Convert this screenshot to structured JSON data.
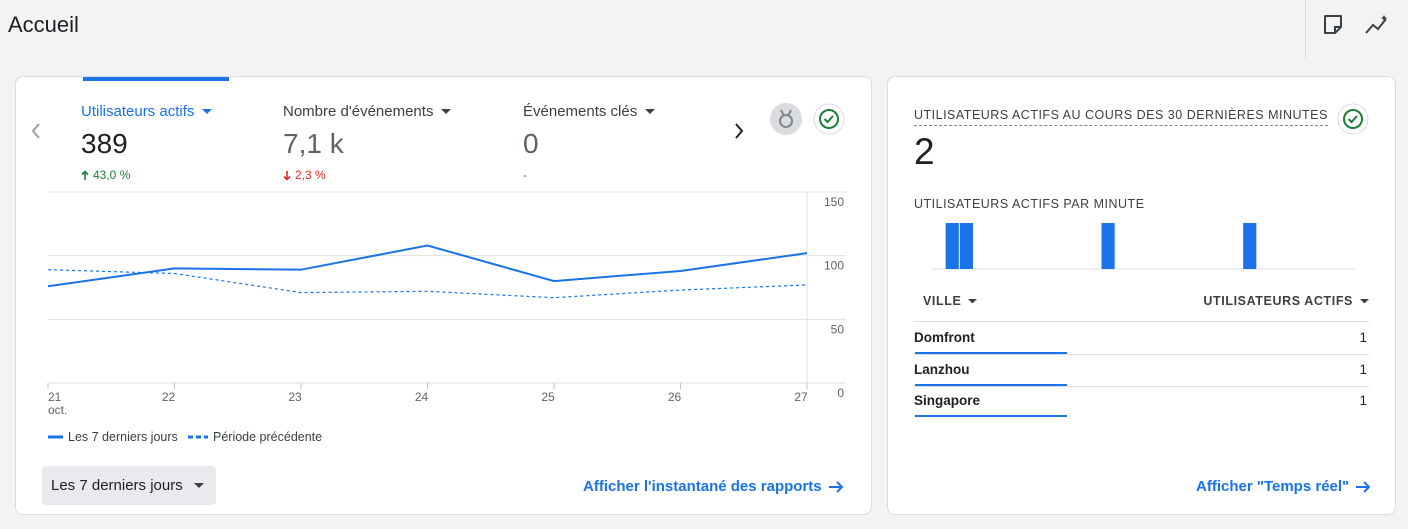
{
  "header": {
    "title": "Accueil"
  },
  "summary_card": {
    "tabs": [
      {
        "label": "Utilisateurs actifs",
        "value": "389",
        "change": "43,0 %",
        "trend": "up"
      },
      {
        "label": "Nombre d'événements",
        "value": "7,1 k",
        "change": "2,3 %",
        "trend": "down"
      },
      {
        "label": "Événements clés",
        "value": "0",
        "change": "-"
      }
    ],
    "date_range": "Les 7 derniers jours",
    "link": "Afficher l'instantané des rapports"
  },
  "realtime_card": {
    "title": "UTILISATEURS ACTIFS AU COURS DES 30 DERNIÈRES MINUTES",
    "value": "2",
    "table": {
      "columns": [
        "VILLE",
        "UTILISATEURS ACTIFS"
      ],
      "rows": [
        [
          "Domfront",
          1
        ],
        [
          "Lanzhou",
          1
        ],
        [
          "Singapore",
          1
        ]
      ]
    },
    "link": "Afficher \"Temps réel\""
  },
  "chart_data": [
    {
      "type": "line",
      "categories": [
        "21",
        "22",
        "23",
        "24",
        "25",
        "26",
        "27"
      ],
      "x_sublabel": "oct.",
      "series": [
        {
          "name": "Les 7 derniers jours",
          "color": "#1a73e8",
          "style": "solid",
          "values": [
            76,
            90,
            89,
            108,
            80,
            88,
            102
          ]
        },
        {
          "name": "Période précédente",
          "color": "#1a73e8",
          "style": "dashed",
          "values": [
            89,
            86,
            71,
            72,
            67,
            73,
            77
          ]
        }
      ],
      "ylim": [
        0,
        150
      ],
      "yticks": [
        0,
        50,
        100,
        150
      ],
      "grid": true,
      "y_axis_side": "right"
    },
    {
      "type": "bar",
      "title": "UTILISATEURS ACTIFS PAR MINUTE",
      "values": [
        0,
        1,
        1,
        0,
        0,
        0,
        0,
        0,
        0,
        0,
        0,
        0,
        1,
        0,
        0,
        0,
        0,
        0,
        0,
        0,
        0,
        0,
        1,
        0,
        0,
        0,
        0,
        0,
        0,
        0
      ],
      "color": "#1a73e8",
      "ylim": [
        0,
        1
      ]
    }
  ]
}
